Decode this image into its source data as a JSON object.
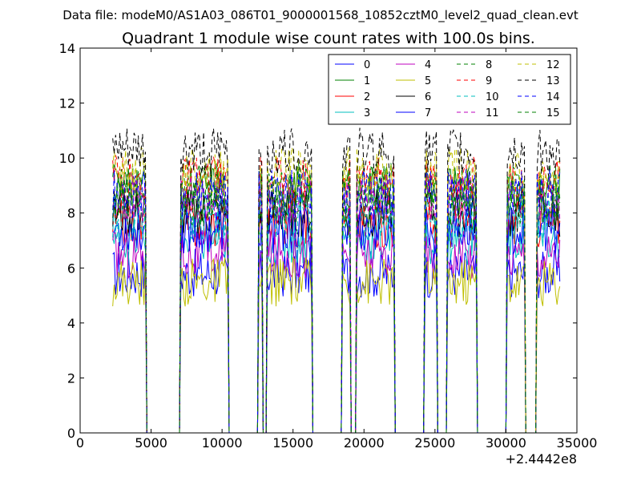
{
  "chart_data": {
    "type": "line",
    "suptitle": "Data file: modeM0/AS1A03_086T01_9000001568_10852cztM0_level2_quad_clean.evt",
    "title": "Quadrant 1 module wise count rates with 100.0s bins.",
    "xlabel": "",
    "ylabel": "",
    "x_offset_label": "+2.4442e8",
    "xlim": [
      0,
      35000
    ],
    "ylim": [
      0,
      14
    ],
    "x_ticks": [
      0,
      5000,
      10000,
      15000,
      20000,
      25000,
      30000,
      35000
    ],
    "x_tick_labels": [
      "0",
      "5000",
      "10000",
      "15000",
      "20000",
      "25000",
      "30000",
      "35000"
    ],
    "y_ticks": [
      0,
      2,
      4,
      6,
      8,
      10,
      12,
      14
    ],
    "y_tick_labels": [
      "0",
      "2",
      "4",
      "6",
      "8",
      "10",
      "12",
      "14"
    ],
    "bin_size_s": 100,
    "x_start": 2300,
    "x_end": 33800,
    "on_intervals": [
      [
        2300,
        4600
      ],
      [
        7100,
        10400
      ],
      [
        12600,
        12800
      ],
      [
        13200,
        16300
      ],
      [
        18500,
        19000
      ],
      [
        19500,
        22100
      ],
      [
        24300,
        25100
      ],
      [
        25900,
        27900
      ],
      [
        30100,
        31300
      ],
      [
        32200,
        33800
      ]
    ],
    "legend_position": "top-right",
    "series": [
      {
        "name": "0",
        "color": "#0000ff",
        "dash": "solid",
        "mean": 5.8
      },
      {
        "name": "1",
        "color": "#008000",
        "dash": "solid",
        "mean": 8.8
      },
      {
        "name": "2",
        "color": "#ff0000",
        "dash": "solid",
        "mean": 7.6
      },
      {
        "name": "3",
        "color": "#00bfbf",
        "dash": "solid",
        "mean": 7.0
      },
      {
        "name": "4",
        "color": "#bf00bf",
        "dash": "solid",
        "mean": 6.5
      },
      {
        "name": "5",
        "color": "#bfbf00",
        "dash": "solid",
        "mean": 5.5
      },
      {
        "name": "6",
        "color": "#000000",
        "dash": "solid",
        "mean": 8.0
      },
      {
        "name": "7",
        "color": "#0000ff",
        "dash": "solid",
        "mean": 7.4
      },
      {
        "name": "8",
        "color": "#008000",
        "dash": "dashed",
        "mean": 9.0
      },
      {
        "name": "9",
        "color": "#ff0000",
        "dash": "dashed",
        "mean": 9.2
      },
      {
        "name": "10",
        "color": "#00bfbf",
        "dash": "dashed",
        "mean": 7.8
      },
      {
        "name": "11",
        "color": "#bf00bf",
        "dash": "dashed",
        "mean": 8.5
      },
      {
        "name": "12",
        "color": "#bfbf00",
        "dash": "dashed",
        "mean": 9.5
      },
      {
        "name": "13",
        "color": "#000000",
        "dash": "dashed",
        "mean": 10.2
      },
      {
        "name": "14",
        "color": "#0000ff",
        "dash": "dashed",
        "mean": 8.7
      },
      {
        "name": "15",
        "color": "#008000",
        "dash": "dashed",
        "mean": 8.3
      }
    ]
  }
}
